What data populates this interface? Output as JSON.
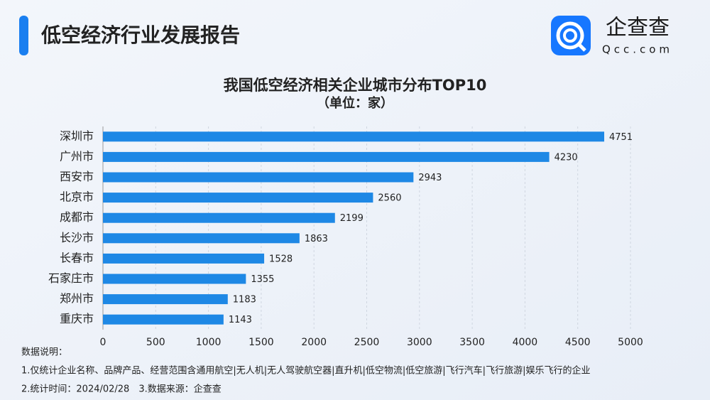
{
  "header": {
    "title": "低空经济行业发展报告",
    "logo_text": "企查查",
    "logo_sub": "Qcc.com"
  },
  "chart_data": {
    "type": "bar",
    "orientation": "horizontal",
    "title": "我国低空经济相关企业城市分布TOP10",
    "subtitle": "（单位：家）",
    "categories": [
      "深圳市",
      "广州市",
      "西安市",
      "北京市",
      "成都市",
      "长沙市",
      "长春市",
      "石家庄市",
      "郑州市",
      "重庆市"
    ],
    "values": [
      4751,
      4230,
      2943,
      2560,
      2199,
      1863,
      1528,
      1355,
      1183,
      1143
    ],
    "color": "#1e88e5",
    "xlim": [
      0,
      5000
    ],
    "xticks": [
      0,
      500,
      1000,
      1500,
      2000,
      2500,
      3000,
      3500,
      4000,
      4500,
      5000
    ],
    "grid": true
  },
  "notes": {
    "heading": "数据说明：",
    "lines": [
      "1.仅统计企业名称、品牌产品、经营范围含通用航空|无人机|无人驾驶航空器|直升机|低空物流|低空旅游|飞行汽车|飞行旅游|娱乐飞行的企业",
      "2.统计时间：2024/02/28　3.数据来源：企查查"
    ]
  }
}
